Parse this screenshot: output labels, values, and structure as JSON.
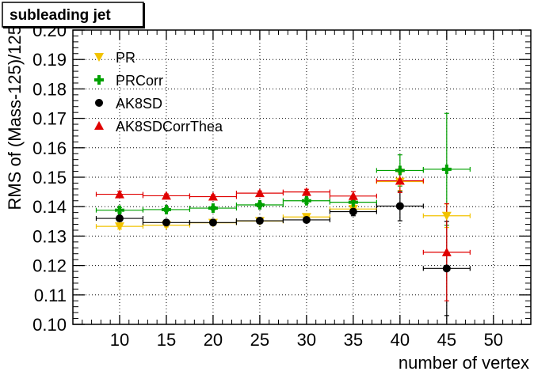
{
  "chart_data": {
    "type": "scatter",
    "title": "subleading jet",
    "xlabel": "number of vertex",
    "ylabel": "RMS of (Mass-125)/125",
    "xlim": [
      5,
      54
    ],
    "ylim": [
      0.1,
      0.2
    ],
    "x_ticks": [
      10,
      15,
      20,
      25,
      30,
      35,
      40,
      45,
      50
    ],
    "y_ticks": [
      0.1,
      0.11,
      0.12,
      0.13,
      0.14,
      0.15,
      0.16,
      0.17,
      0.18,
      0.19,
      0.2
    ],
    "grid": true,
    "legend_position": "top-left",
    "series": [
      {
        "name": "PR",
        "color": "#f2c300",
        "marker": "triangle-down",
        "points": [
          {
            "x": 10,
            "y": 0.1333,
            "xerr": 2.5,
            "yerr": 0.0009
          },
          {
            "x": 15,
            "y": 0.1337,
            "xerr": 2.5,
            "yerr": 0.0006
          },
          {
            "x": 20,
            "y": 0.1345,
            "xerr": 2.5,
            "yerr": 0.0006
          },
          {
            "x": 25,
            "y": 0.1351,
            "xerr": 2.5,
            "yerr": 0.0007
          },
          {
            "x": 30,
            "y": 0.1365,
            "xerr": 2.5,
            "yerr": 0.0009
          },
          {
            "x": 35,
            "y": 0.1392,
            "xerr": 2.5,
            "yerr": 0.0014
          },
          {
            "x": 40,
            "y": 0.1485,
            "xerr": 2.5,
            "yerr": 0.003
          },
          {
            "x": 45,
            "y": 0.1369,
            "xerr": 2.5,
            "yerr": 0.004
          }
        ]
      },
      {
        "name": "PRCorr",
        "color": "#00a000",
        "marker": "cross",
        "points": [
          {
            "x": 10,
            "y": 0.1388,
            "xerr": 2.5,
            "yerr": 0.0009
          },
          {
            "x": 15,
            "y": 0.139,
            "xerr": 2.5,
            "yerr": 0.0006
          },
          {
            "x": 20,
            "y": 0.1395,
            "xerr": 2.5,
            "yerr": 0.0006
          },
          {
            "x": 25,
            "y": 0.1406,
            "xerr": 2.5,
            "yerr": 0.0007
          },
          {
            "x": 30,
            "y": 0.142,
            "xerr": 2.5,
            "yerr": 0.0009
          },
          {
            "x": 35,
            "y": 0.1415,
            "xerr": 2.5,
            "yerr": 0.0015
          },
          {
            "x": 40,
            "y": 0.1523,
            "xerr": 2.5,
            "yerr": 0.0053
          },
          {
            "x": 45,
            "y": 0.1527,
            "xerr": 2.5,
            "yerr": 0.019
          }
        ]
      },
      {
        "name": "AK8SD",
        "color": "#000000",
        "marker": "circle",
        "points": [
          {
            "x": 10,
            "y": 0.136,
            "xerr": 2.5,
            "yerr": 0.001
          },
          {
            "x": 15,
            "y": 0.1346,
            "xerr": 2.5,
            "yerr": 0.0006
          },
          {
            "x": 20,
            "y": 0.1346,
            "xerr": 2.5,
            "yerr": 0.0006
          },
          {
            "x": 25,
            "y": 0.1352,
            "xerr": 2.5,
            "yerr": 0.0007
          },
          {
            "x": 30,
            "y": 0.1355,
            "xerr": 2.5,
            "yerr": 0.0009
          },
          {
            "x": 35,
            "y": 0.1383,
            "xerr": 2.5,
            "yerr": 0.0014
          },
          {
            "x": 40,
            "y": 0.1402,
            "xerr": 2.5,
            "yerr": 0.005
          },
          {
            "x": 45,
            "y": 0.119,
            "xerr": 2.5,
            "yerr": 0.016
          }
        ]
      },
      {
        "name": "AK8SDCorrThea",
        "color": "#e00000",
        "marker": "triangle-up",
        "points": [
          {
            "x": 10,
            "y": 0.1442,
            "xerr": 2.5,
            "yerr": 0.001
          },
          {
            "x": 15,
            "y": 0.1437,
            "xerr": 2.5,
            "yerr": 0.0006
          },
          {
            "x": 20,
            "y": 0.1434,
            "xerr": 2.5,
            "yerr": 0.0006
          },
          {
            "x": 25,
            "y": 0.1446,
            "xerr": 2.5,
            "yerr": 0.0007
          },
          {
            "x": 30,
            "y": 0.145,
            "xerr": 2.5,
            "yerr": 0.0009
          },
          {
            "x": 35,
            "y": 0.1436,
            "xerr": 2.5,
            "yerr": 0.0015
          },
          {
            "x": 40,
            "y": 0.1488,
            "xerr": 2.5,
            "yerr": 0.004
          },
          {
            "x": 45,
            "y": 0.1245,
            "xerr": 2.5,
            "yerr": 0.0165
          }
        ]
      }
    ]
  }
}
